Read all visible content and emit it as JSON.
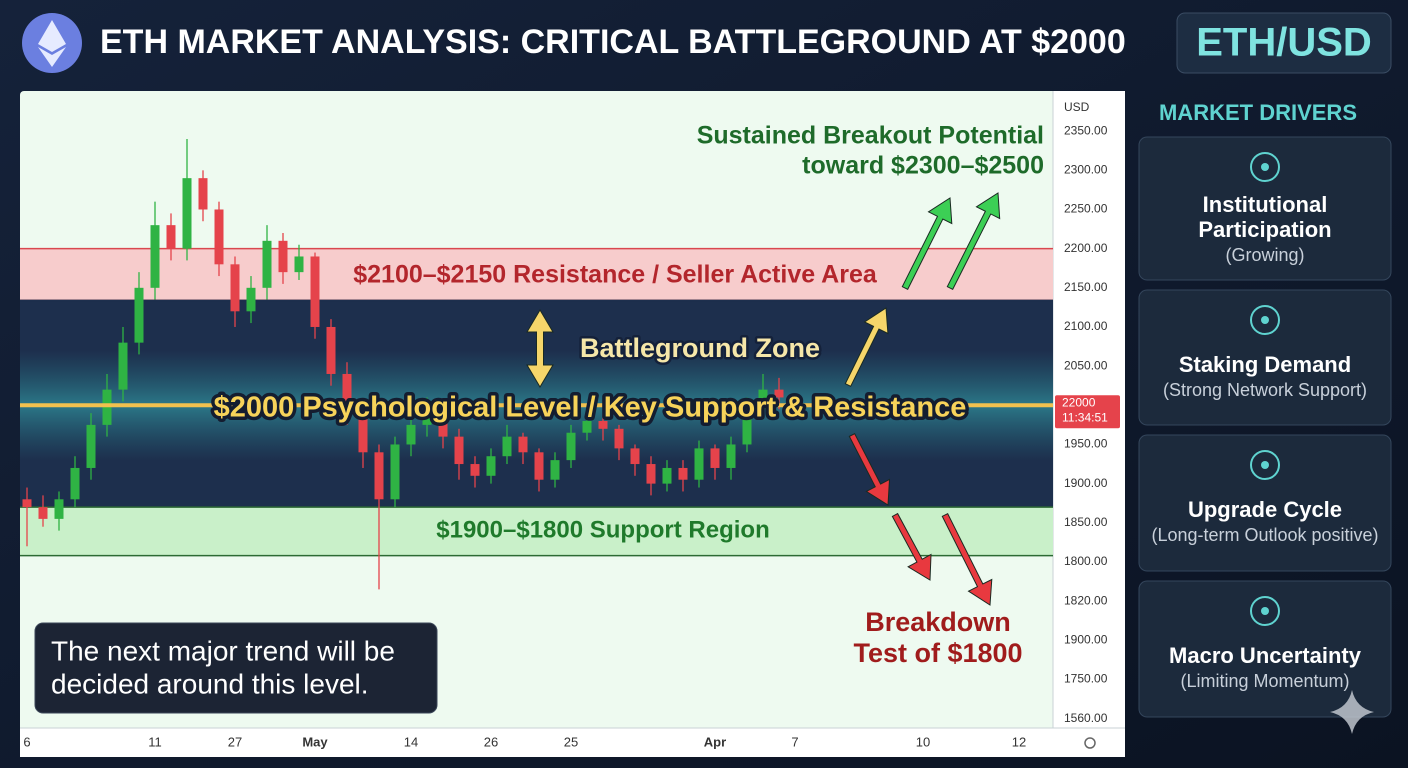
{
  "header": {
    "title": "ETH MARKET ANALYSIS: CRITICAL BATTLEGROUND AT $2000",
    "pair": "ETH/USD"
  },
  "chart_data": {
    "type": "candlestick",
    "currency": "USD",
    "categories": [
      "6",
      null,
      null,
      null,
      null,
      null,
      null,
      null,
      "11",
      null,
      null,
      null,
      null,
      "27",
      null,
      null,
      null,
      null,
      "May",
      null,
      null,
      null,
      null,
      null,
      "14",
      null,
      null,
      null,
      null,
      "26",
      null,
      null,
      null,
      null,
      "25",
      null,
      null,
      null,
      null,
      null,
      null,
      null,
      null,
      "Apr",
      null,
      null,
      null,
      null,
      "7",
      null,
      null,
      null,
      null,
      null,
      null,
      null,
      "10",
      null,
      null,
      null,
      null,
      null,
      "12",
      null
    ],
    "open": [
      1880,
      1870,
      1855,
      1880,
      1920,
      1975,
      2020,
      2080,
      2150,
      2230,
      2200,
      2290,
      2250,
      2180,
      2120,
      2150,
      2210,
      2170,
      2190,
      2100,
      2040,
      1990,
      1940,
      1880,
      1950,
      1975,
      1995,
      1960,
      1925,
      1910,
      1935,
      1960,
      1940,
      1905,
      1930,
      1965,
      1980,
      1970,
      1945,
      1925,
      1900,
      1920,
      1905,
      1945,
      1920,
      1950,
      1995,
      2020,
      null,
      null,
      null,
      null,
      null,
      null,
      null,
      null,
      null,
      null,
      null,
      null,
      null,
      null,
      null,
      null
    ],
    "high": [
      1895,
      1885,
      1890,
      1935,
      1990,
      2040,
      2100,
      2170,
      2260,
      2245,
      2340,
      2300,
      2260,
      2190,
      2165,
      2230,
      2220,
      2205,
      2195,
      2110,
      2055,
      2000,
      1950,
      1960,
      1990,
      2010,
      2005,
      1970,
      1935,
      1945,
      1975,
      1965,
      1945,
      1940,
      1975,
      1995,
      1990,
      1975,
      1950,
      1935,
      1930,
      1930,
      1955,
      1950,
      1960,
      2010,
      2040,
      2035,
      null,
      null,
      null,
      null,
      null,
      null,
      null,
      null,
      null,
      null,
      null,
      null,
      null,
      null,
      null,
      null
    ],
    "low": [
      1820,
      1845,
      1840,
      1870,
      1905,
      1960,
      2005,
      2065,
      2135,
      2185,
      2185,
      2235,
      2165,
      2100,
      2105,
      2135,
      2155,
      2160,
      2085,
      2025,
      1975,
      1920,
      1765,
      1870,
      1935,
      1960,
      1945,
      1905,
      1895,
      1900,
      1925,
      1925,
      1890,
      1895,
      1920,
      1955,
      1955,
      1930,
      1910,
      1885,
      1890,
      1890,
      1895,
      1905,
      1905,
      1940,
      1985,
      1995,
      null,
      null,
      null,
      null,
      null,
      null,
      null,
      null,
      null,
      null,
      null,
      null,
      null,
      null,
      null,
      null
    ],
    "close": [
      1870,
      1855,
      1880,
      1920,
      1975,
      2020,
      2080,
      2150,
      2230,
      2200,
      2290,
      2250,
      2180,
      2120,
      2150,
      2210,
      2170,
      2190,
      2100,
      2040,
      1990,
      1940,
      1880,
      1950,
      1975,
      1995,
      1960,
      1925,
      1910,
      1935,
      1960,
      1940,
      1905,
      1930,
      1965,
      1980,
      1970,
      1945,
      1925,
      1900,
      1920,
      1905,
      1945,
      1920,
      1950,
      1995,
      2020,
      2010,
      null,
      null,
      null,
      null,
      null,
      null,
      null,
      null,
      null,
      null,
      null,
      null,
      null,
      null,
      null,
      null
    ],
    "up_color": "#2fb344",
    "down_color": "#e5434b",
    "ylim": [
      1588,
      2400
    ],
    "yticks": [
      {
        "value": 2350,
        "label": "2350.00"
      },
      {
        "value": 2300,
        "label": "2300.00"
      },
      {
        "value": 2250,
        "label": "2250.00"
      },
      {
        "value": 2200,
        "label": "2200.00"
      },
      {
        "value": 2150,
        "label": "2150.00"
      },
      {
        "value": 2100,
        "label": "2100.00"
      },
      {
        "value": 2050,
        "label": "2050.00"
      },
      {
        "value": 1950,
        "label": "1950.00"
      },
      {
        "value": 1900,
        "label": "1900.00"
      },
      {
        "value": 1850,
        "label": "1850.00"
      },
      {
        "value": 1800,
        "label": "1800.00"
      }
    ],
    "extra_scale_labels": [
      "1820.00",
      "1900.00",
      "1750.00",
      "1560.00"
    ],
    "grid": false,
    "price_tag": "22000",
    "price_time": "11:34:51",
    "zones": [
      {
        "name": "$2100–$2150 Resistance / Seller Active Area",
        "range": [
          2134,
          2200
        ],
        "color": "#f7cccc",
        "edge": "#d9474f",
        "text_color": "#b3262c"
      },
      {
        "name": "Battleground Zone",
        "range": [
          1870,
          2134
        ],
        "color": "#1d2f4d",
        "edge": "#1d2f4d",
        "text_color": "#f6e7a9"
      },
      {
        "name": "$1900–$1800 Support Region",
        "range": [
          1808,
          1870
        ],
        "color": "#c9f0c9",
        "edge": "#2c6a34",
        "text_color": "#1f7a2b"
      }
    ],
    "key_level": {
      "name": "$2000 Psychological Level / Key Support & Resistance",
      "value": 2000,
      "color": "#f2c14e"
    },
    "breakout_note": [
      "Sustained Breakout Potential",
      "toward $2300–$2500"
    ],
    "breakdown_note": [
      "Breakdown",
      "Test of $1800"
    ]
  },
  "callout": [
    "The next major trend will be",
    "decided around this level."
  ],
  "sidebar": {
    "title": "MARKET DRIVERS",
    "cards": [
      {
        "title": [
          "Institutional",
          "Participation"
        ],
        "subtitle": "(Growing)"
      },
      {
        "title": [
          "Staking Demand"
        ],
        "subtitle": "(Strong Network Support)"
      },
      {
        "title": [
          "Upgrade Cycle"
        ],
        "subtitle": "(Long-term Outlook positive)"
      },
      {
        "title": [
          "Macro Uncertainty"
        ],
        "subtitle": "(Limiting Momentum)"
      }
    ]
  }
}
